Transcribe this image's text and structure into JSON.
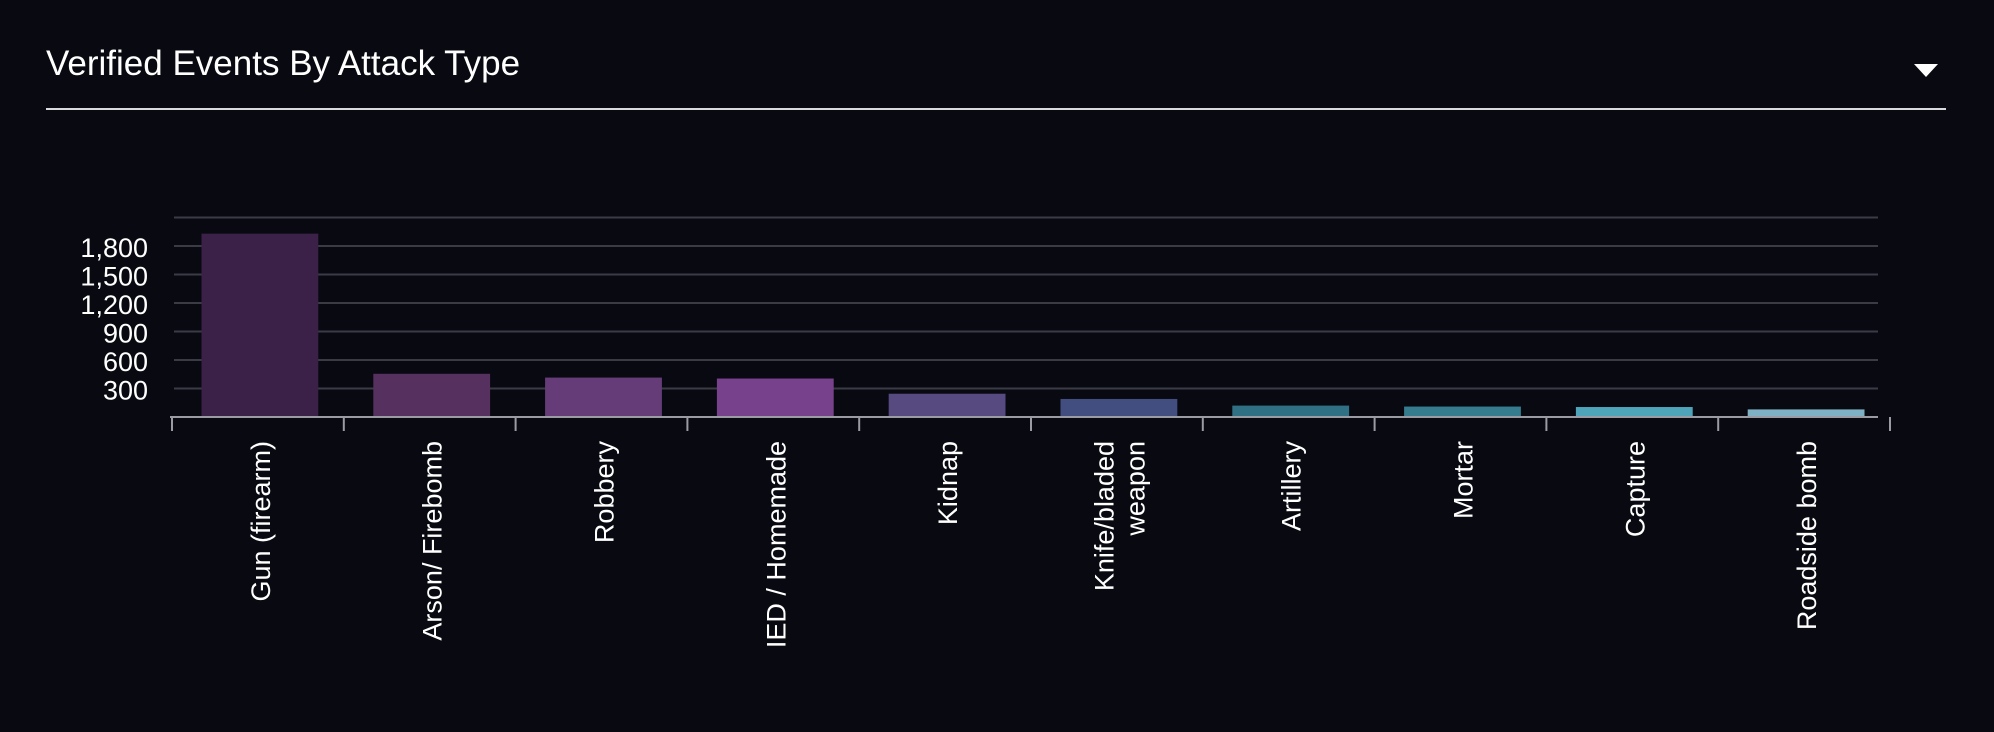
{
  "header": {
    "title": "Verified Events By Attack Type",
    "dropdown_icon": "caret-down-icon"
  },
  "chart_data": {
    "type": "bar",
    "title": "Verified Events By Attack Type",
    "xlabel": "",
    "ylabel": "",
    "categories": [
      "Gun (firearm)",
      "Arson/ Firebomb",
      "Robbery",
      "IED / Homemade",
      "Kidnap",
      "Knife/bladed weapon",
      "Artillery",
      "Mortar",
      "Capture",
      "Roadside bomb"
    ],
    "category_lines": [
      [
        "Gun (firearm)"
      ],
      [
        "Arson/ Firebomb"
      ],
      [
        "Robbery"
      ],
      [
        "IED / Homemade"
      ],
      [
        "Kidnap"
      ],
      [
        "Knife/bladed",
        "weapon"
      ],
      [
        "Artillery"
      ],
      [
        "Mortar"
      ],
      [
        "Capture"
      ],
      [
        "Roadside bomb"
      ]
    ],
    "values": [
      1930,
      455,
      415,
      405,
      245,
      190,
      120,
      110,
      105,
      80
    ],
    "ylim": [
      0,
      2100
    ],
    "yticks": [
      300,
      600,
      900,
      1200,
      1500,
      1800
    ],
    "ytick_labels": [
      "300",
      "600",
      "900",
      "1,200",
      "1,500",
      "1,800"
    ],
    "grid": true,
    "colors": [
      "#3b2148",
      "#56305f",
      "#663c78",
      "#78418c",
      "#574a80",
      "#434e80",
      "#2f7085",
      "#357d8e",
      "#4ea5b9",
      "#7eb1c4"
    ]
  }
}
